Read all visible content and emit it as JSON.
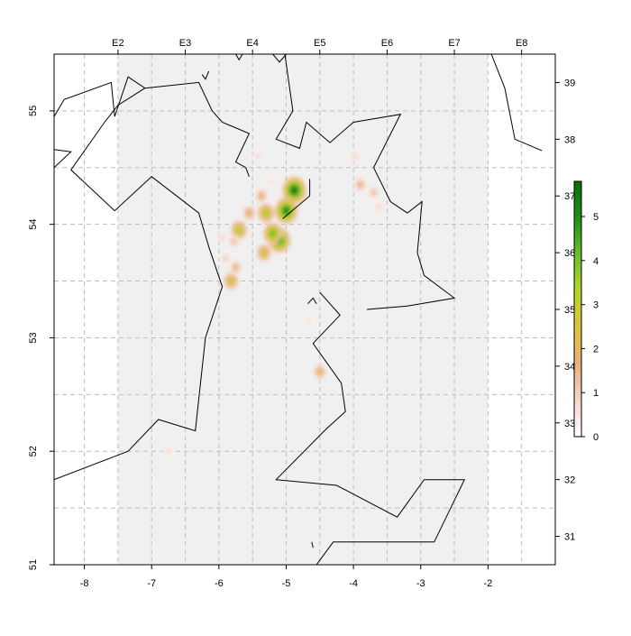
{
  "map": {
    "lon_axis": {
      "ticks": [
        -8,
        -7,
        -6,
        -5,
        -4,
        -3,
        -2
      ],
      "range": [
        -8.45,
        -1.0
      ]
    },
    "lat_axis": {
      "ticks": [
        51,
        52,
        53,
        54,
        55
      ],
      "range": [
        51.0,
        55.5
      ]
    },
    "ices_rectangles_top": [
      "E2",
      "E3",
      "E4",
      "E5",
      "E6",
      "E7",
      "E8"
    ],
    "ices_rectangles_top_lon": [
      -7.5,
      -6.5,
      -5.5,
      -4.5,
      -3.5,
      -2.5,
      -1.5
    ],
    "ices_rows_right": [
      "31",
      "32",
      "33",
      "34",
      "35",
      "36",
      "37",
      "38",
      "39"
    ],
    "ices_rows_right_lat": [
      51.25,
      51.75,
      52.25,
      52.75,
      53.25,
      53.75,
      54.25,
      54.75,
      55.25
    ],
    "shaded_area_lon": [
      -7.5,
      -2.0
    ],
    "shaded_color": "#f0f0f0",
    "grid_lon": [
      -8,
      -7.5,
      -7,
      -6.5,
      -6,
      -5.5,
      -5,
      -4.5,
      -4,
      -3.5,
      -3,
      -2.5,
      -2,
      -1.5
    ],
    "grid_lat": [
      51.5,
      52,
      52.5,
      53,
      53.5,
      54,
      54.5,
      55
    ]
  },
  "legend": {
    "ticks": [
      0,
      1,
      2,
      3,
      4,
      5
    ],
    "max": 5.8,
    "colors": [
      "#ffffff",
      "#f5d6cc",
      "#e8b07a",
      "#dfc23a",
      "#b5d62a",
      "#6bbf2a",
      "#1e8f1a",
      "#0b6e0b"
    ]
  },
  "density_hotspots": [
    {
      "lon": -4.88,
      "lat": 54.3,
      "value": 5.8
    },
    {
      "lon": -5.0,
      "lat": 54.12,
      "value": 5.5
    },
    {
      "lon": -5.1,
      "lat": 53.86,
      "value": 5.2
    },
    {
      "lon": -5.2,
      "lat": 53.92,
      "value": 4.3
    },
    {
      "lon": -5.3,
      "lat": 54.1,
      "value": 3.6
    },
    {
      "lon": -5.7,
      "lat": 53.95,
      "value": 3.4
    },
    {
      "lon": -5.33,
      "lat": 53.75,
      "value": 3.0
    },
    {
      "lon": -5.82,
      "lat": 53.5,
      "value": 3.0
    },
    {
      "lon": -5.55,
      "lat": 54.1,
      "value": 2.2
    },
    {
      "lon": -5.37,
      "lat": 54.25,
      "value": 2.0
    },
    {
      "lon": -5.75,
      "lat": 53.62,
      "value": 1.8
    },
    {
      "lon": -5.78,
      "lat": 53.85,
      "value": 1.5
    },
    {
      "lon": -5.95,
      "lat": 53.88,
      "value": 1.0
    },
    {
      "lon": -5.9,
      "lat": 53.7,
      "value": 1.2
    },
    {
      "lon": -4.5,
      "lat": 52.7,
      "value": 2.2
    },
    {
      "lon": -3.9,
      "lat": 54.35,
      "value": 1.8
    },
    {
      "lon": -3.7,
      "lat": 54.28,
      "value": 1.5
    },
    {
      "lon": -3.62,
      "lat": 54.15,
      "value": 1.0
    },
    {
      "lon": -3.98,
      "lat": 54.6,
      "value": 1.0
    },
    {
      "lon": -5.42,
      "lat": 54.6,
      "value": 0.9
    },
    {
      "lon": -5.22,
      "lat": 54.38,
      "value": 0.8
    },
    {
      "lon": -4.67,
      "lat": 53.15,
      "value": 0.8
    },
    {
      "lon": -6.75,
      "lat": 52.0,
      "value": 0.9
    }
  ],
  "coastlines": [
    [
      [
        -8.45,
        54.95
      ],
      [
        -8.3,
        55.1
      ],
      [
        -7.6,
        55.25
      ],
      [
        -7.55,
        54.95
      ],
      [
        -7.35,
        55.3
      ],
      [
        -7.1,
        55.2
      ],
      [
        -7.5,
        55.05
      ],
      [
        -7.7,
        54.9
      ],
      [
        -8.2,
        54.48
      ],
      [
        -7.55,
        54.12
      ],
      [
        -7.0,
        54.42
      ],
      [
        -6.3,
        54.1
      ],
      [
        -6.15,
        53.8
      ],
      [
        -5.95,
        53.45
      ],
      [
        -6.2,
        53.0
      ],
      [
        -6.35,
        52.18
      ],
      [
        -6.9,
        52.28
      ],
      [
        -7.35,
        52.0
      ],
      [
        -8.45,
        51.75
      ]
    ],
    [
      [
        -8.45,
        54.66
      ],
      [
        -8.2,
        54.64
      ],
      [
        -8.45,
        54.5
      ]
    ],
    [
      [
        -7.1,
        55.2
      ],
      [
        -6.3,
        55.25
      ],
      [
        -6.1,
        55.0
      ],
      [
        -5.95,
        54.9
      ],
      [
        -5.55,
        54.8
      ],
      [
        -5.75,
        54.55
      ],
      [
        -5.6,
        54.5
      ],
      [
        -5.55,
        54.42
      ]
    ],
    [
      [
        -6.25,
        55.32
      ],
      [
        -6.2,
        55.28
      ],
      [
        -6.15,
        55.35
      ]
    ],
    [
      [
        -5.75,
        55.5
      ],
      [
        -5.7,
        55.45
      ],
      [
        -5.65,
        55.5
      ]
    ],
    [
      [
        -5.2,
        55.5
      ],
      [
        -5.1,
        55.43
      ],
      [
        -5.0,
        55.5
      ]
    ],
    [
      [
        -5.02,
        55.5
      ],
      [
        -4.9,
        55.0
      ],
      [
        -5.15,
        54.75
      ],
      [
        -4.8,
        54.67
      ],
      [
        -4.7,
        54.9
      ],
      [
        -4.35,
        54.72
      ],
      [
        -4.0,
        54.9
      ],
      [
        -3.3,
        54.97
      ],
      [
        -3.7,
        54.5
      ],
      [
        -3.45,
        54.2
      ],
      [
        -3.2,
        54.1
      ],
      [
        -2.98,
        54.2
      ],
      [
        -3.05,
        53.75
      ],
      [
        -2.95,
        53.55
      ],
      [
        -2.5,
        53.35
      ],
      [
        -3.2,
        53.28
      ],
      [
        -3.8,
        53.25
      ]
    ],
    [
      [
        -4.68,
        53.3
      ],
      [
        -4.6,
        53.35
      ],
      [
        -4.55,
        53.3
      ]
    ],
    [
      [
        -4.5,
        53.4
      ],
      [
        -4.2,
        53.2
      ],
      [
        -4.6,
        52.95
      ],
      [
        -4.18,
        52.6
      ],
      [
        -4.12,
        52.35
      ],
      [
        -4.4,
        52.2
      ],
      [
        -5.15,
        51.75
      ],
      [
        -4.25,
        51.7
      ],
      [
        -3.35,
        51.42
      ],
      [
        -2.95,
        51.75
      ],
      [
        -2.35,
        51.75
      ],
      [
        -2.8,
        51.2
      ],
      [
        -3.4,
        51.2
      ],
      [
        -4.3,
        51.2
      ],
      [
        -4.55,
        51.0
      ]
    ],
    [
      [
        -5.05,
        54.05
      ],
      [
        -4.65,
        54.25
      ],
      [
        -4.65,
        54.4
      ]
    ],
    [
      [
        -4.62,
        51.2
      ],
      [
        -4.6,
        51.15
      ]
    ],
    [
      [
        -1.95,
        55.5
      ],
      [
        -1.75,
        55.2
      ],
      [
        -1.6,
        54.75
      ],
      [
        -1.2,
        54.65
      ]
    ]
  ]
}
